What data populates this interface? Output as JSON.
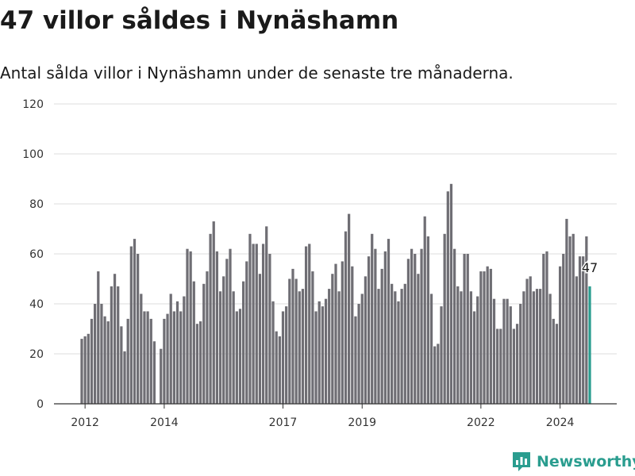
{
  "title": "47 villor såldes i Nynäshamn",
  "subtitle": "Antal sålda villor i Nynäshamn under de senaste tre månaderna.",
  "brand": {
    "name": "Newsworthy",
    "icon": "newsworthy-logo-icon",
    "color": "#2a9d8f"
  },
  "colors": {
    "bar": "#6f6e74",
    "highlight": "#2a9d8f",
    "grid": "#dddddd"
  },
  "chart_data": {
    "type": "bar",
    "ylim": [
      0,
      120
    ],
    "yticks": [
      0,
      20,
      40,
      60,
      80,
      100,
      120
    ],
    "xticks": [
      "2012",
      "2014",
      "2017",
      "2019",
      "2022",
      "2024"
    ],
    "xtick_index": [
      1,
      25,
      61,
      85,
      121,
      145
    ],
    "series": [
      {
        "values": [
          26,
          27,
          28,
          34,
          40,
          53,
          40,
          35,
          33,
          47,
          52,
          47,
          31,
          21,
          34,
          63,
          66,
          60,
          44,
          37,
          37,
          34,
          25,
          null,
          22,
          34,
          36,
          44,
          37,
          41,
          37,
          43,
          62,
          61,
          49,
          32,
          33,
          48,
          53,
          68,
          73,
          61,
          45,
          51,
          58,
          62,
          45,
          37,
          38,
          49,
          57,
          68,
          64,
          64,
          52,
          64,
          71,
          60,
          41,
          29,
          27,
          37,
          39,
          50,
          54,
          50,
          45,
          46,
          63,
          64,
          53,
          37,
          41,
          39,
          42,
          46,
          52,
          56,
          45,
          57,
          69,
          76,
          55,
          35,
          40,
          44,
          51,
          59,
          68,
          62,
          46,
          54,
          61,
          66,
          48,
          45,
          41,
          46,
          48,
          58,
          62,
          60,
          52,
          62,
          75,
          67,
          44,
          23,
          24,
          39,
          68,
          85,
          88,
          62,
          47,
          45,
          60,
          60,
          45,
          37,
          43,
          53,
          53,
          55,
          54,
          42,
          30,
          30,
          42,
          42,
          39,
          30,
          32,
          40,
          45,
          50,
          51,
          45,
          46,
          46,
          60,
          61,
          44,
          34,
          32,
          55,
          60,
          74,
          67,
          68,
          51,
          59,
          59,
          67,
          47
        ]
      }
    ],
    "last_value_label": "47"
  }
}
